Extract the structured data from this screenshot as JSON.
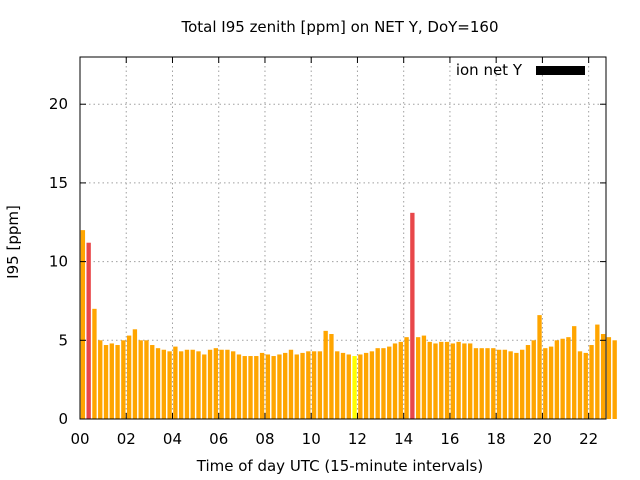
{
  "chart_data": {
    "type": "bar",
    "title": "Total I95 zenith [ppm] on NET Y, DoY=160",
    "xlabel": "Time of day UTC (15-minute intervals)",
    "ylabel": "I95 [ppm]",
    "xlim": [
      0,
      22.75
    ],
    "ylim": [
      0,
      23
    ],
    "xticks": [
      0,
      2,
      4,
      6,
      8,
      10,
      12,
      14,
      16,
      18,
      20,
      22
    ],
    "xtick_labels": [
      "00",
      "02",
      "04",
      "06",
      "08",
      "10",
      "12",
      "14",
      "16",
      "18",
      "20",
      "22"
    ],
    "yticks": [
      0,
      5,
      10,
      15,
      20
    ],
    "ytick_labels": [
      "0",
      "5",
      "10",
      "15",
      "20"
    ],
    "grid": true,
    "legend": {
      "placement": "top-right",
      "label": "ion net Y",
      "color": "#000000"
    },
    "bar_interval_hours": 0.25,
    "colors": {
      "normal": "#ffa500",
      "high": "#e8474a",
      "highlight": "#ffff00"
    },
    "series": [
      {
        "values": [
          12.0,
          11.2,
          7.0,
          5.0,
          4.7,
          4.8,
          4.7,
          5.0,
          5.3,
          5.7,
          5.0,
          5.0,
          4.7,
          4.5,
          4.4,
          4.3,
          4.6,
          4.3,
          4.4,
          4.4,
          4.3,
          4.1,
          4.4,
          4.5,
          4.4,
          4.4,
          4.3,
          4.1,
          4.0,
          4.0,
          4.0,
          4.2,
          4.1,
          4.0,
          4.1,
          4.2,
          4.4,
          4.1,
          4.2,
          4.3,
          4.3,
          4.3,
          5.6,
          5.4,
          4.3,
          4.2,
          4.1,
          4.0,
          4.1,
          4.2,
          4.3,
          4.5,
          4.5,
          4.6,
          4.8,
          4.9,
          5.2,
          13.1,
          5.2,
          5.3,
          4.9,
          4.8,
          4.9,
          4.9,
          4.8,
          4.9,
          4.8,
          4.8,
          4.5,
          4.5,
          4.5,
          4.5,
          4.4,
          4.4,
          4.3,
          4.2,
          4.4,
          4.7,
          5.0,
          6.6,
          4.5,
          4.6,
          5.0,
          5.1,
          5.2,
          5.9,
          4.3,
          4.2,
          4.7,
          6.0,
          5.4,
          5.2,
          5.0
        ],
        "categories": [
          "normal",
          "high",
          "normal",
          "normal",
          "normal",
          "normal",
          "normal",
          "normal",
          "normal",
          "normal",
          "normal",
          "normal",
          "normal",
          "normal",
          "normal",
          "normal",
          "normal",
          "normal",
          "normal",
          "normal",
          "normal",
          "normal",
          "normal",
          "normal",
          "normal",
          "normal",
          "normal",
          "normal",
          "normal",
          "normal",
          "normal",
          "normal",
          "normal",
          "normal",
          "normal",
          "normal",
          "normal",
          "normal",
          "normal",
          "normal",
          "normal",
          "normal",
          "normal",
          "normal",
          "normal",
          "normal",
          "normal",
          "highlight",
          "normal",
          "normal",
          "normal",
          "normal",
          "normal",
          "normal",
          "normal",
          "normal",
          "normal",
          "high",
          "normal",
          "normal",
          "normal",
          "normal",
          "normal",
          "normal",
          "normal",
          "normal",
          "normal",
          "normal",
          "normal",
          "normal",
          "normal",
          "normal",
          "normal",
          "normal",
          "normal",
          "normal",
          "normal",
          "normal",
          "normal",
          "normal",
          "normal",
          "normal",
          "normal",
          "normal",
          "normal",
          "normal",
          "normal",
          "normal",
          "normal",
          "normal",
          "normal",
          "normal",
          "normal"
        ]
      }
    ]
  }
}
